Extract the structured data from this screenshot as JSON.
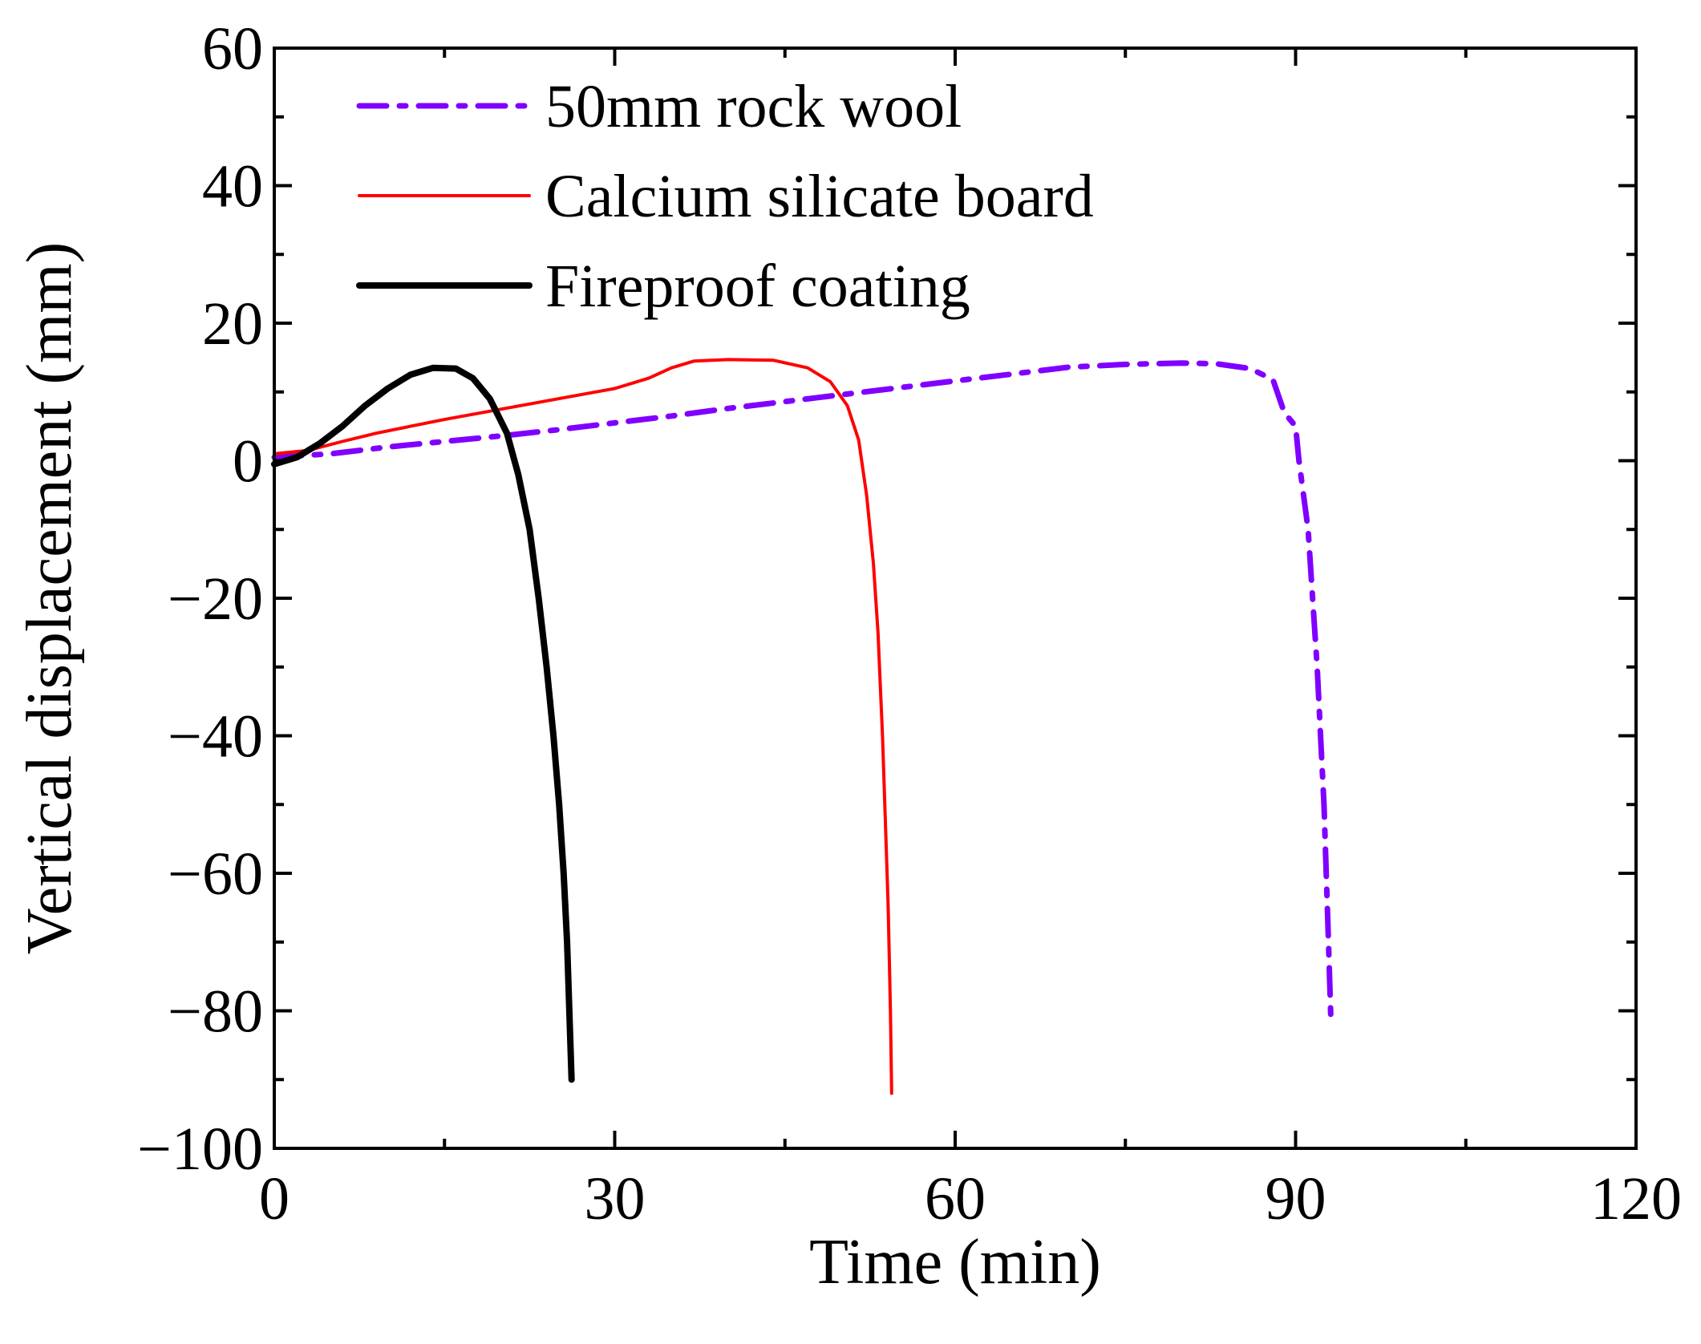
{
  "chart_data": {
    "type": "line",
    "title": "",
    "xlabel": "Time  (min)",
    "ylabel": "Vertical displacement  (mm)",
    "xlim": [
      0,
      120
    ],
    "ylim": [
      -100,
      60
    ],
    "xticks": [
      0,
      30,
      60,
      90,
      120
    ],
    "xtick_labels": [
      "0",
      "30",
      "60",
      "90",
      "120"
    ],
    "xminor": [
      15,
      45,
      75,
      105
    ],
    "yticks": [
      -100,
      -80,
      -60,
      -40,
      -20,
      0,
      20,
      40,
      60
    ],
    "ytick_labels": [
      "−100",
      "−80",
      "−60",
      "−40",
      "−20",
      "0",
      "20",
      "40",
      "60"
    ],
    "yminor": [
      -90,
      -70,
      -50,
      -30,
      -10,
      10,
      30,
      50
    ],
    "grid": false,
    "legend_position": "top-left",
    "series": [
      {
        "name": "50mm rock wool",
        "color": "#7F00FF",
        "style": "dashdot",
        "points": [
          [
            0,
            0.5
          ],
          [
            5,
            1.0
          ],
          [
            10,
            2.0
          ],
          [
            15,
            2.8
          ],
          [
            20,
            3.6
          ],
          [
            25,
            4.5
          ],
          [
            30,
            5.5
          ],
          [
            35,
            6.5
          ],
          [
            40,
            7.6
          ],
          [
            45,
            8.6
          ],
          [
            50,
            9.6
          ],
          [
            55,
            10.6
          ],
          [
            60,
            11.6
          ],
          [
            65,
            12.6
          ],
          [
            70,
            13.6
          ],
          [
            75,
            14.0
          ],
          [
            80,
            14.2
          ],
          [
            83,
            14.1
          ],
          [
            86,
            13.4
          ],
          [
            88,
            11.8
          ],
          [
            89,
            7.0
          ],
          [
            90,
            5.0
          ],
          [
            90.3,
            0
          ],
          [
            90.7,
            -5
          ],
          [
            91.1,
            -10
          ],
          [
            91.5,
            -20
          ],
          [
            91.9,
            -30
          ],
          [
            92.2,
            -40
          ],
          [
            92.5,
            -50
          ],
          [
            92.7,
            -60
          ],
          [
            92.9,
            -70
          ],
          [
            93.1,
            -81
          ]
        ]
      },
      {
        "name": "Calcium silicate board",
        "color": "#FF0000",
        "style": "solid",
        "points": [
          [
            0,
            1.0
          ],
          [
            3,
            1.5
          ],
          [
            6,
            2.8
          ],
          [
            9,
            4.0
          ],
          [
            12,
            5.0
          ],
          [
            15,
            6.0
          ],
          [
            20,
            7.5
          ],
          [
            25,
            9.0
          ],
          [
            30,
            10.5
          ],
          [
            33,
            12.0
          ],
          [
            35,
            13.5
          ],
          [
            37,
            14.5
          ],
          [
            40,
            14.7
          ],
          [
            44,
            14.6
          ],
          [
            47,
            13.5
          ],
          [
            49,
            11.5
          ],
          [
            50.5,
            8.0
          ],
          [
            51.5,
            3.0
          ],
          [
            52.2,
            -5
          ],
          [
            52.8,
            -15
          ],
          [
            53.2,
            -25
          ],
          [
            53.6,
            -40
          ],
          [
            53.9,
            -55
          ],
          [
            54.1,
            -65
          ],
          [
            54.3,
            -80
          ],
          [
            54.4,
            -92
          ]
        ]
      },
      {
        "name": "Fireproof coating",
        "color": "#000000",
        "style": "solid",
        "points": [
          [
            0,
            -0.5
          ],
          [
            2,
            0.5
          ],
          [
            4,
            2.5
          ],
          [
            6,
            5.0
          ],
          [
            8,
            8.0
          ],
          [
            10,
            10.5
          ],
          [
            12,
            12.5
          ],
          [
            14,
            13.5
          ],
          [
            16,
            13.4
          ],
          [
            17.5,
            12.0
          ],
          [
            19,
            9.0
          ],
          [
            20.5,
            4.0
          ],
          [
            21.5,
            -2
          ],
          [
            22.5,
            -10
          ],
          [
            23.3,
            -20
          ],
          [
            24,
            -30
          ],
          [
            24.6,
            -40
          ],
          [
            25.1,
            -50
          ],
          [
            25.5,
            -60
          ],
          [
            25.8,
            -70
          ],
          [
            26.0,
            -80
          ],
          [
            26.2,
            -90
          ]
        ]
      }
    ]
  }
}
